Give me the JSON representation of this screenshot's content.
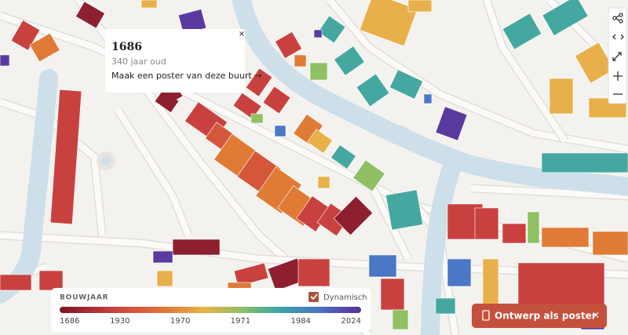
{
  "popup": {
    "title": "1686",
    "age": "340 jaar oud",
    "link": "Maak een poster van deze buurt →",
    "close": "×"
  },
  "legend": {
    "title": "BOUWJAAR",
    "toggle": "Dynamisch",
    "ticks": [
      1686,
      1930,
      1970,
      1971,
      1984,
      2024
    ]
  },
  "poster_button": {
    "label": "Ontwerp als poster",
    "close": "×"
  }
}
